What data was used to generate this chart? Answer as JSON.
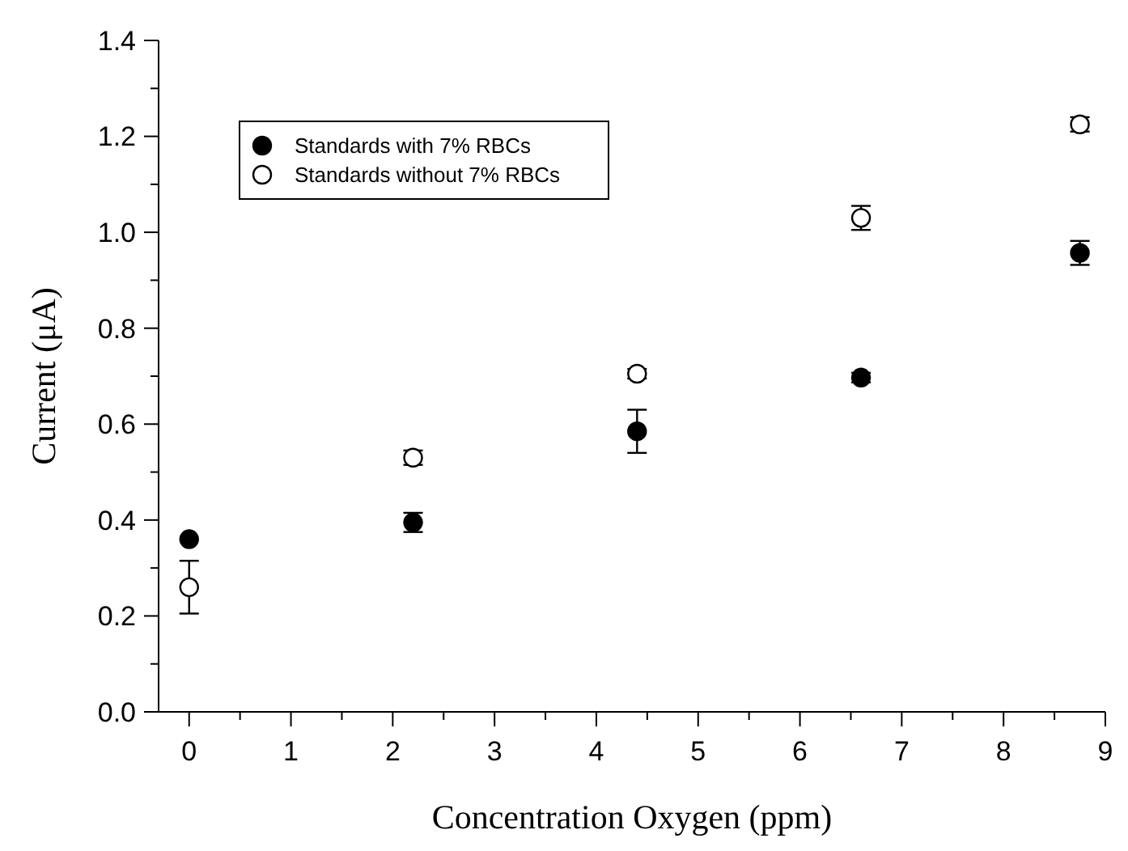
{
  "chart_data": {
    "type": "scatter",
    "xlabel": "Concentration Oxygen (ppm)",
    "ylabel": "Current (μA)",
    "xlim": [
      -0.3,
      9
    ],
    "ylim": [
      0,
      1.4
    ],
    "xticks": [
      0,
      {
        "value": 0.5,
        "label": null
      },
      1,
      {
        "value": 1.5,
        "label": null
      },
      2,
      {
        "value": 2.5,
        "label": null
      },
      3,
      {
        "value": 3.5,
        "label": null
      },
      4,
      {
        "value": 4.5,
        "label": null
      },
      5,
      {
        "value": 5.5,
        "label": null
      },
      6,
      {
        "value": 6.5,
        "label": null
      },
      7,
      {
        "value": 7.5,
        "label": null
      },
      8,
      {
        "value": 8.5,
        "label": null
      },
      9
    ],
    "yticks": [
      {
        "value": 0,
        "label": "0.0"
      },
      {
        "value": 0.1,
        "label": null
      },
      0.2,
      {
        "value": 0.3,
        "label": null
      },
      0.4,
      {
        "value": 0.5,
        "label": null
      },
      0.6,
      {
        "value": 0.7,
        "label": null
      },
      0.8,
      {
        "value": 0.9,
        "label": null
      },
      {
        "value": 1,
        "label": "1.0"
      },
      {
        "value": 1.1,
        "label": null
      },
      1.2,
      {
        "value": 1.3,
        "label": null
      },
      1.4
    ],
    "x": [
      0,
      2.2,
      4.4,
      6.6,
      8.75
    ],
    "grid": false,
    "legend": "top left",
    "marker": "circle",
    "series": [
      {
        "name": "Standards with 7% RBCs",
        "color": "#000000",
        "values": [
          0.36,
          0.395,
          0.585,
          0.697,
          0.957
        ],
        "errors": [
          null,
          0.02,
          0.045,
          0.01,
          0.025
        ]
      },
      {
        "name": "Standards without 7% RBCs",
        "color": "#ffffff",
        "values": [
          0.26,
          0.53,
          0.705,
          1.03,
          1.225
        ],
        "errors": [
          0.055,
          0.015,
          0.01,
          0.025,
          0.015
        ]
      }
    ]
  }
}
